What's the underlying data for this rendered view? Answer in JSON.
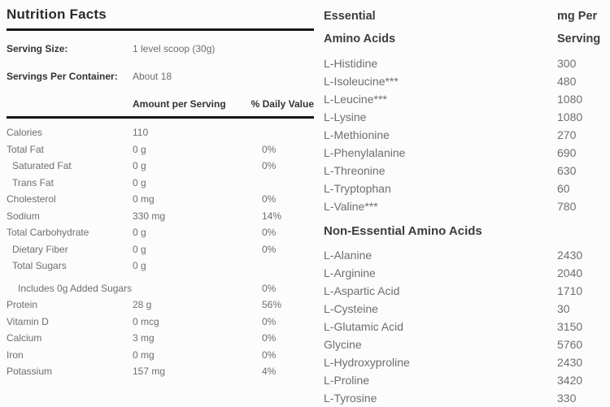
{
  "colors": {
    "background": "#fcfcfc",
    "dark_text": "#2b2b2b",
    "gray_text": "#6e6e6e",
    "rule": "#161616"
  },
  "nutrition_facts": {
    "title": "Nutrition Facts",
    "serving_size_label": "Serving Size:",
    "serving_size_value": "1 level scoop (30g)",
    "servings_per_container_label": "Servings Per Container:",
    "servings_per_container_value": "About 18",
    "amount_header": "Amount per Serving",
    "daily_value_header": "% Daily Value",
    "rows": [
      {
        "label": "Calories",
        "amount": "110",
        "pct": "",
        "indent": 0,
        "gap_before": false
      },
      {
        "label": "Total Fat",
        "amount": "0 g",
        "pct": "0%",
        "indent": 0,
        "gap_before": false
      },
      {
        "label": "Saturated Fat",
        "amount": "0 g",
        "pct": "0%",
        "indent": 1,
        "gap_before": false
      },
      {
        "label": "Trans Fat",
        "amount": "0 g",
        "pct": "",
        "indent": 1,
        "gap_before": false
      },
      {
        "label": "Cholesterol",
        "amount": "0 mg",
        "pct": "0%",
        "indent": 0,
        "gap_before": false
      },
      {
        "label": "Sodium",
        "amount": "330 mg",
        "pct": "14%",
        "indent": 0,
        "gap_before": false
      },
      {
        "label": "Total Carbohydrate",
        "amount": "0 g",
        "pct": "0%",
        "indent": 0,
        "gap_before": false
      },
      {
        "label": "Dietary Fiber",
        "amount": "0 g",
        "pct": "0%",
        "indent": 1,
        "gap_before": false
      },
      {
        "label": "Total Sugars",
        "amount": "0 g",
        "pct": "",
        "indent": 1,
        "gap_before": false
      },
      {
        "label": "Includes 0g Added Sugars",
        "amount": "",
        "pct": "0%",
        "indent": 2,
        "gap_before": true
      },
      {
        "label": "Protein",
        "amount": "28 g",
        "pct": "56%",
        "indent": 0,
        "gap_before": false
      },
      {
        "label": "Vitamin D",
        "amount": "0 mcg",
        "pct": "0%",
        "indent": 0,
        "gap_before": false
      },
      {
        "label": "Calcium",
        "amount": "3 mg",
        "pct": "0%",
        "indent": 0,
        "gap_before": false
      },
      {
        "label": "Iron",
        "amount": "0 mg",
        "pct": "0%",
        "indent": 0,
        "gap_before": false
      },
      {
        "label": "Potassium",
        "amount": "157 mg",
        "pct": "4%",
        "indent": 0,
        "gap_before": false
      }
    ]
  },
  "amino_acids": {
    "essential_header_line1": "Essential",
    "essential_header_line2": "Amino Acids",
    "unit_header_line1": "mg Per",
    "unit_header_line2": "Serving",
    "non_essential_header": "Non-Essential Amino Acids",
    "essential": [
      {
        "name": "L-Histidine",
        "value": "300"
      },
      {
        "name": "L-Isoleucine***",
        "value": "480"
      },
      {
        "name": "L-Leucine***",
        "value": "1080"
      },
      {
        "name": "L-Lysine",
        "value": "1080"
      },
      {
        "name": "L-Methionine",
        "value": "270"
      },
      {
        "name": "L-Phenylalanine",
        "value": "690"
      },
      {
        "name": "L-Threonine",
        "value": "630"
      },
      {
        "name": "L-Tryptophan",
        "value": "60"
      },
      {
        "name": "L-Valine***",
        "value": "780"
      }
    ],
    "non_essential": [
      {
        "name": "L-Alanine",
        "value": "2430"
      },
      {
        "name": "L-Arginine",
        "value": "2040"
      },
      {
        "name": "L-Aspartic Acid",
        "value": "1710"
      },
      {
        "name": "L-Cysteine",
        "value": "30"
      },
      {
        "name": "L-Glutamic Acid",
        "value": "3150"
      },
      {
        "name": "Glycine",
        "value": "5760"
      },
      {
        "name": "L-Hydroxyproline",
        "value": "2430"
      },
      {
        "name": "L-Proline",
        "value": "3420"
      },
      {
        "name": "L-Tyrosine",
        "value": "330"
      }
    ]
  }
}
